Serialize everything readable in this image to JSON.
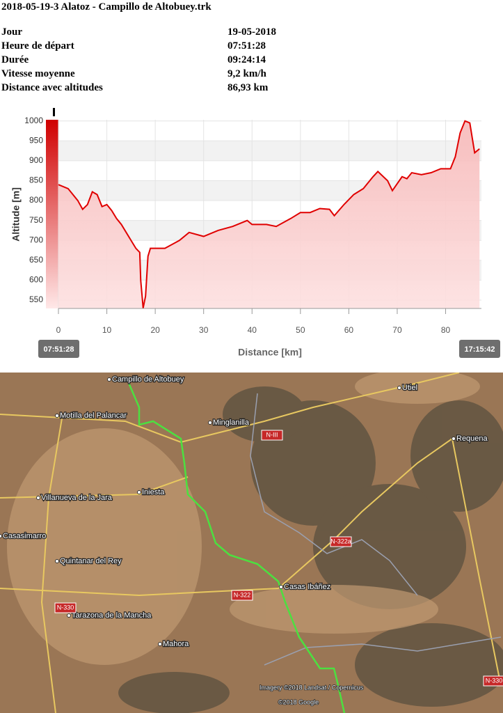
{
  "title": "2018-05-19-3 Alatoz - Campillo de Altobuey.trk",
  "info": {
    "rows": [
      [
        "Jour",
        "19-05-2018"
      ],
      [
        "Heure de départ",
        "07:51:28"
      ],
      [
        "Durée",
        "09:24:14"
      ],
      [
        "Vitesse moyenne",
        "9,2 km/h"
      ],
      [
        "Distance avec altitudes",
        "86,93 km"
      ]
    ]
  },
  "chart_data": {
    "type": "area",
    "xlabel": "Distance [km]",
    "ylabel": "Altitude [m]",
    "x": [
      0,
      2,
      4,
      5,
      6,
      7,
      8,
      9,
      10,
      11,
      12,
      13,
      14,
      15,
      16,
      16.8,
      17,
      17.5,
      18,
      18.5,
      19,
      22,
      25,
      27,
      30,
      33,
      36,
      39,
      40,
      43,
      45,
      48,
      50,
      52,
      54,
      56,
      57,
      59,
      61,
      63,
      65,
      66,
      68,
      69,
      71,
      72,
      73,
      75,
      77,
      79,
      81,
      82,
      83,
      84,
      85,
      86,
      87
    ],
    "values": [
      840,
      830,
      800,
      778,
      790,
      822,
      815,
      785,
      790,
      775,
      755,
      740,
      720,
      700,
      680,
      670,
      600,
      530,
      560,
      660,
      680,
      680,
      700,
      720,
      710,
      725,
      735,
      750,
      740,
      740,
      735,
      755,
      770,
      770,
      780,
      778,
      762,
      790,
      815,
      830,
      860,
      873,
      850,
      825,
      860,
      855,
      870,
      865,
      870,
      880,
      880,
      910,
      970,
      1000,
      995,
      920,
      930
    ],
    "xlim": [
      0,
      87.4
    ],
    "xticks": [
      0,
      10,
      20,
      30,
      40,
      50,
      60,
      70,
      80
    ],
    "ylim": [
      529,
      1003
    ],
    "yticks": [
      550,
      600,
      650,
      700,
      750,
      800,
      850,
      900,
      950,
      1000
    ],
    "start_label": "07:51:28",
    "end_label": "17:15:42",
    "color": "#e00000",
    "grid": true
  },
  "map": {
    "places": [
      "Campillo de Altobuey",
      "Motilla del Palancar",
      "Minglanilla",
      "Utiel",
      "Requena",
      "Iniesta",
      "Villanueva de la Jara",
      "Casasimarro",
      "Quintanar del Rey",
      "Casas Ibáñez",
      "Tarazona de la Mancha",
      "Mahora"
    ],
    "roads": [
      "N-III",
      "N-322a",
      "N-322",
      "N-330",
      "N-330"
    ],
    "credits": [
      "Imagery ©2018 Landsat / Copernicus",
      "©2018 Google"
    ]
  }
}
